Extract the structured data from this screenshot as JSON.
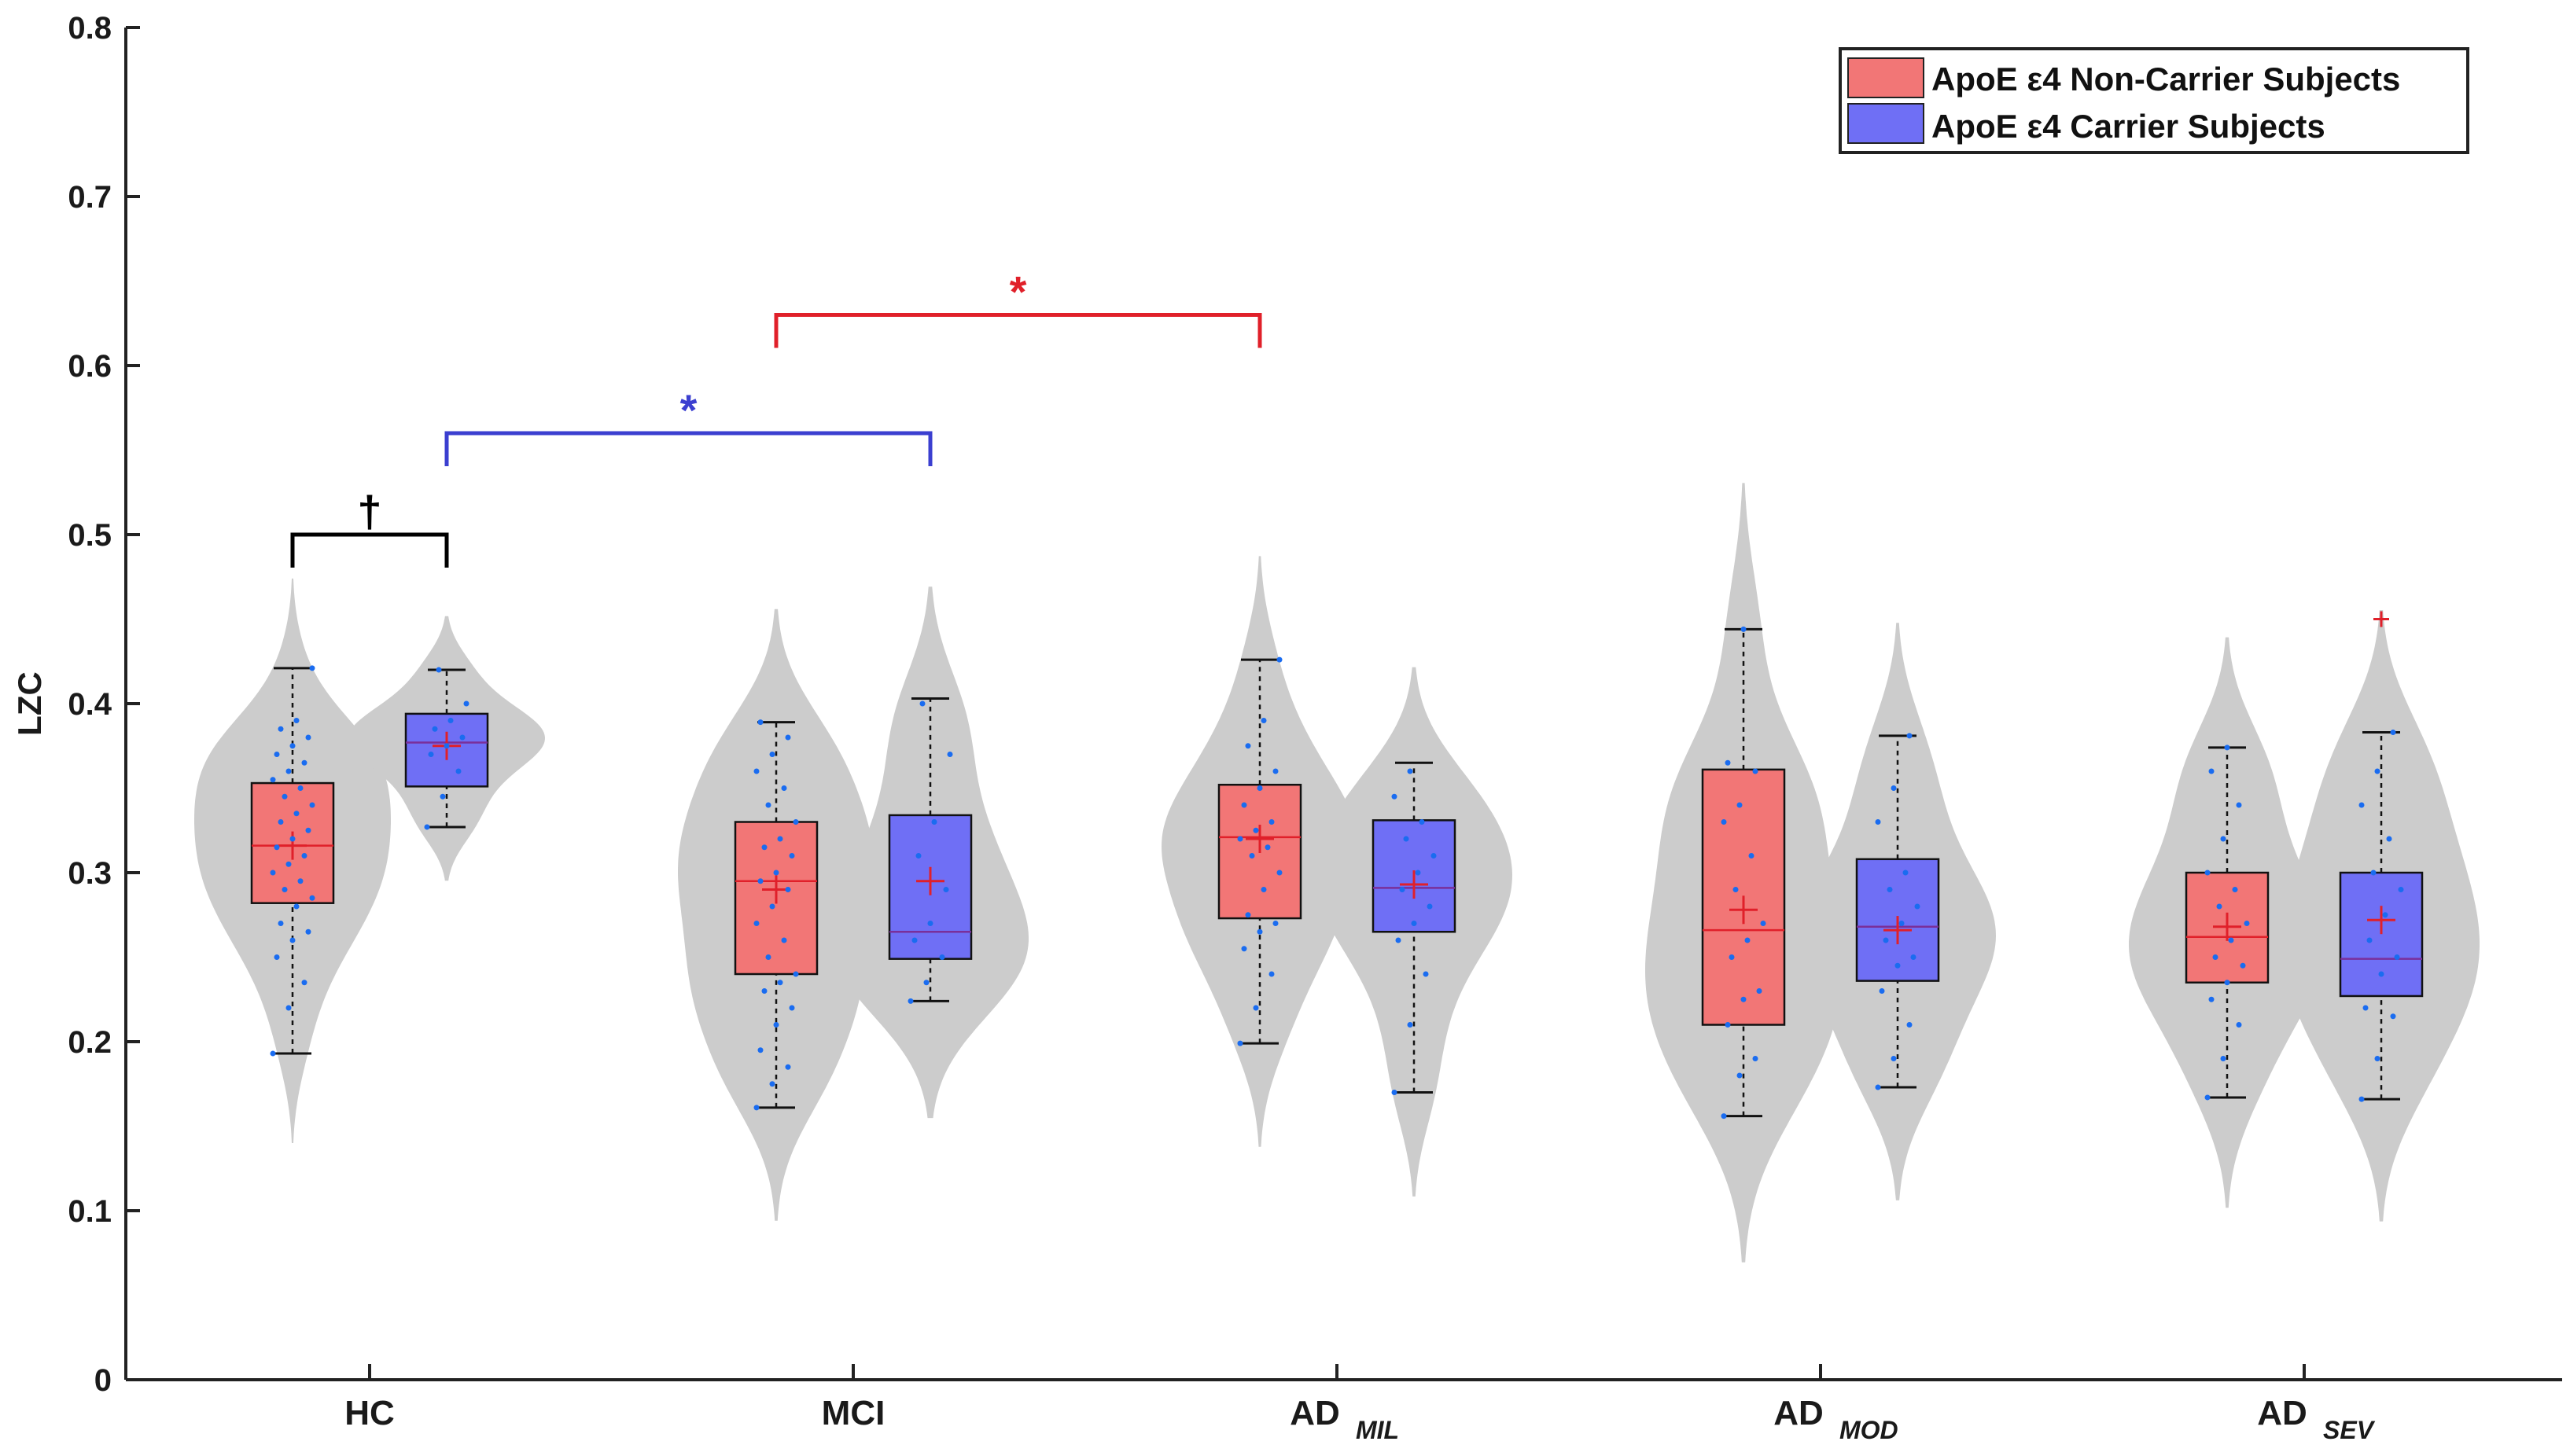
{
  "chart_data": {
    "type": "violin-box",
    "title": "",
    "xlabel": "",
    "ylabel": "LZC",
    "ylim": [
      0,
      0.8
    ],
    "yticks": [
      0,
      0.1,
      0.2,
      0.3,
      0.4,
      0.5,
      0.6,
      0.7,
      0.8
    ],
    "ytick_labels": [
      "0",
      "0.1",
      "0.2",
      "0.3",
      "0.4",
      "0.5",
      "0.6",
      "0.7",
      "0.8"
    ],
    "categories": [
      {
        "main": "HC",
        "sub": ""
      },
      {
        "main": "MCI",
        "sub": ""
      },
      {
        "main": "AD",
        "sub": "MIL"
      },
      {
        "main": "AD",
        "sub": "MOD"
      },
      {
        "main": "AD",
        "sub": "SEV"
      }
    ],
    "colors": {
      "noncarrier": "#f27676",
      "carrier": "#6f6ff5",
      "violin": "#cccccc",
      "median_nc": "#e0202a",
      "median_c": "#7a2f9a",
      "points": "#1a6cf0",
      "sig_red": "#e0202a",
      "sig_blue": "#3b3fd0",
      "sig_black": "#000000"
    },
    "series": [
      {
        "name": "ApoE ε4 Non-Carrier Subjects",
        "boxes": [
          {
            "whisker_low": 0.193,
            "q1": 0.282,
            "median": 0.316,
            "q3": 0.353,
            "whisker_high": 0.421,
            "mean": 0.316
          },
          {
            "whisker_low": 0.161,
            "q1": 0.24,
            "median": 0.295,
            "q3": 0.33,
            "whisker_high": 0.389,
            "mean": 0.29
          },
          {
            "whisker_low": 0.199,
            "q1": 0.273,
            "median": 0.321,
            "q3": 0.352,
            "whisker_high": 0.426,
            "mean": 0.32
          },
          {
            "whisker_low": 0.156,
            "q1": 0.21,
            "median": 0.266,
            "q3": 0.361,
            "whisker_high": 0.444,
            "mean": 0.278
          },
          {
            "whisker_low": 0.167,
            "q1": 0.235,
            "median": 0.262,
            "q3": 0.3,
            "whisker_high": 0.374,
            "mean": 0.268
          }
        ],
        "points": [
          [
            0.193,
            0.22,
            0.235,
            0.25,
            0.26,
            0.265,
            0.27,
            0.28,
            0.285,
            0.29,
            0.295,
            0.3,
            0.305,
            0.31,
            0.315,
            0.32,
            0.325,
            0.33,
            0.335,
            0.34,
            0.345,
            0.35,
            0.355,
            0.36,
            0.365,
            0.37,
            0.375,
            0.38,
            0.385,
            0.39,
            0.421
          ],
          [
            0.161,
            0.175,
            0.185,
            0.195,
            0.21,
            0.22,
            0.23,
            0.235,
            0.24,
            0.25,
            0.26,
            0.27,
            0.28,
            0.29,
            0.295,
            0.3,
            0.31,
            0.315,
            0.32,
            0.33,
            0.34,
            0.35,
            0.36,
            0.37,
            0.38,
            0.389
          ],
          [
            0.199,
            0.22,
            0.24,
            0.255,
            0.265,
            0.27,
            0.275,
            0.29,
            0.3,
            0.31,
            0.315,
            0.32,
            0.325,
            0.33,
            0.34,
            0.35,
            0.36,
            0.375,
            0.39,
            0.426
          ],
          [
            0.156,
            0.18,
            0.19,
            0.21,
            0.225,
            0.23,
            0.25,
            0.26,
            0.27,
            0.29,
            0.31,
            0.33,
            0.34,
            0.36,
            0.365,
            0.444
          ],
          [
            0.167,
            0.19,
            0.21,
            0.225,
            0.235,
            0.245,
            0.25,
            0.26,
            0.27,
            0.28,
            0.29,
            0.3,
            0.32,
            0.34,
            0.36,
            0.374
          ]
        ]
      },
      {
        "name": "ApoE ε4 Carrier Subjects",
        "boxes": [
          {
            "whisker_low": 0.327,
            "q1": 0.351,
            "median": 0.377,
            "q3": 0.394,
            "whisker_high": 0.42,
            "mean": 0.375
          },
          {
            "whisker_low": 0.224,
            "q1": 0.249,
            "median": 0.265,
            "q3": 0.334,
            "whisker_high": 0.403,
            "mean": 0.295
          },
          {
            "whisker_low": 0.17,
            "q1": 0.265,
            "median": 0.291,
            "q3": 0.331,
            "whisker_high": 0.365,
            "mean": 0.293
          },
          {
            "whisker_low": 0.173,
            "q1": 0.236,
            "median": 0.268,
            "q3": 0.308,
            "whisker_high": 0.381,
            "mean": 0.266
          },
          {
            "whisker_low": 0.166,
            "q1": 0.227,
            "median": 0.249,
            "q3": 0.3,
            "whisker_high": 0.383,
            "mean": 0.272
          }
        ],
        "outliers": [
          [],
          [],
          [],
          [],
          [
            0.45
          ]
        ],
        "points": [
          [
            0.327,
            0.345,
            0.36,
            0.37,
            0.375,
            0.38,
            0.385,
            0.39,
            0.4,
            0.42
          ],
          [
            0.224,
            0.235,
            0.25,
            0.26,
            0.27,
            0.29,
            0.31,
            0.33,
            0.37,
            0.4
          ],
          [
            0.17,
            0.21,
            0.24,
            0.26,
            0.27,
            0.28,
            0.29,
            0.3,
            0.31,
            0.32,
            0.33,
            0.345,
            0.36
          ],
          [
            0.173,
            0.19,
            0.21,
            0.23,
            0.245,
            0.25,
            0.26,
            0.27,
            0.28,
            0.29,
            0.3,
            0.33,
            0.35,
            0.381
          ],
          [
            0.166,
            0.19,
            0.215,
            0.22,
            0.24,
            0.25,
            0.26,
            0.275,
            0.29,
            0.3,
            0.32,
            0.34,
            0.36,
            0.383
          ]
        ]
      }
    ],
    "significance": [
      {
        "symbol": "†",
        "from_category": 0,
        "from_series": 0,
        "to_category": 0,
        "to_series": 1,
        "y": 0.5,
        "color": "#000000"
      },
      {
        "symbol": "*",
        "from_category": 0,
        "from_series": 1,
        "to_category": 1,
        "to_series": 1,
        "y": 0.56,
        "color": "#3b3fd0"
      },
      {
        "symbol": "*",
        "from_category": 1,
        "from_series": 0,
        "to_category": 2,
        "to_series": 0,
        "y": 0.63,
        "color": "#e0202a"
      }
    ],
    "legend": {
      "position": "top-right",
      "entries": [
        "ApoE ε4 Non-Carrier Subjects",
        "ApoE ε4 Carrier Subjects"
      ]
    }
  }
}
